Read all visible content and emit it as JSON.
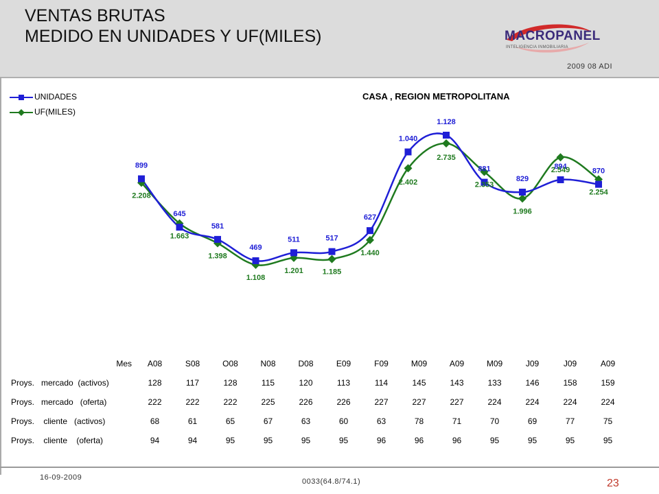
{
  "header": {
    "title_line1": "VENTAS BRUTAS",
    "title_line2": "MEDIDO EN UNIDADES Y UF(MILES)",
    "logo_text": "MACROPANEL",
    "logo_subtext": "INTELIGENCIA INMOBILIARIA",
    "period": "2009 08 ADI"
  },
  "footer": {
    "date": "16-09-2009",
    "code": "0033(64.8/74.1)",
    "page_number": "23"
  },
  "colors": {
    "unidades": "#1f1fd6",
    "uf": "#1f7a1f",
    "accent": "#c0392b"
  },
  "chart_data": {
    "type": "line",
    "title": "CASA , REGION METROPOLITANA",
    "categories": [
      "A08",
      "S08",
      "O08",
      "N08",
      "D08",
      "E09",
      "F09",
      "M09",
      "A09",
      "M09",
      "J09",
      "J09",
      "A09"
    ],
    "series": [
      {
        "name": "UNIDADES",
        "marker": "square",
        "values": [
          899,
          645,
          581,
          469,
          511,
          517,
          627,
          1040,
          1128,
          881,
          829,
          894,
          870
        ],
        "labels": [
          "899",
          "645",
          "581",
          "469",
          "511",
          "517",
          "627",
          "1.040",
          "1.128",
          "881",
          "829",
          "894",
          "870"
        ]
      },
      {
        "name": "UF(MILES)",
        "marker": "diamond",
        "values": [
          2208,
          1663,
          1398,
          1108,
          1201,
          1185,
          1440,
          2402,
          2735,
          2353,
          1996,
          2549,
          2254
        ],
        "labels": [
          "2.208",
          "1.663",
          "1.398",
          "1.108",
          "1.201",
          "1.185",
          "1.440",
          "2.402",
          "2.735",
          "2.353",
          "1.996",
          "2.549",
          "2.254"
        ]
      }
    ],
    "legend": {
      "position": "top-left",
      "entries": [
        "UNIDADES",
        "UF(MILES)"
      ]
    },
    "grid": false
  },
  "table": {
    "header_label": "Mes",
    "months": [
      "A08",
      "S08",
      "O08",
      "N08",
      "D08",
      "E09",
      "F09",
      "M09",
      "A09",
      "M09",
      "J09",
      "J09",
      "A09"
    ],
    "rows": [
      {
        "label": "Proys.   mercado  (activos)",
        "values": [
          "128",
          "117",
          "128",
          "115",
          "120",
          "113",
          "114",
          "145",
          "143",
          "133",
          "146",
          "158",
          "159"
        ]
      },
      {
        "label": "Proys.   mercado   (oferta)",
        "values": [
          "222",
          "222",
          "222",
          "225",
          "226",
          "226",
          "227",
          "227",
          "227",
          "224",
          "224",
          "224",
          "224"
        ]
      },
      {
        "label": "Proys.    cliente   (activos)",
        "values": [
          "68",
          "61",
          "65",
          "67",
          "63",
          "60",
          "63",
          "78",
          "71",
          "70",
          "69",
          "77",
          "75"
        ]
      },
      {
        "label": "Proys.    cliente    (oferta)",
        "values": [
          "94",
          "94",
          "95",
          "95",
          "95",
          "95",
          "96",
          "96",
          "96",
          "95",
          "95",
          "95",
          "95"
        ]
      }
    ]
  }
}
